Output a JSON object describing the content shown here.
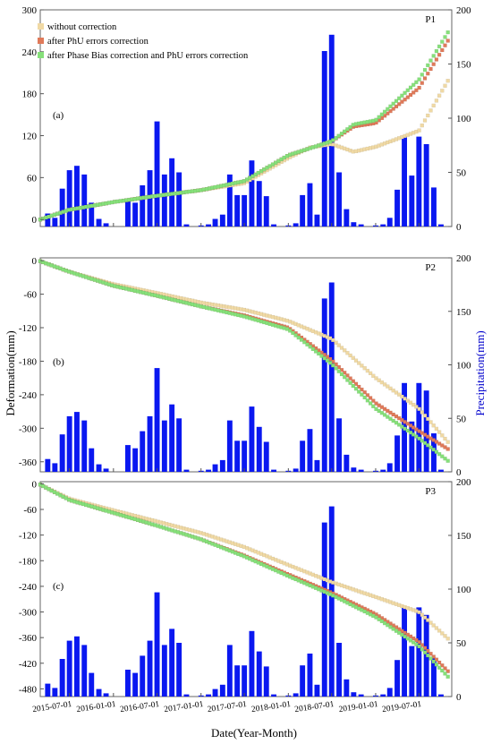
{
  "colors": {
    "without_correction": "#f0d9a4",
    "phu_correction": "#e07a5a",
    "phase_bias_phu_correction": "#86e07a",
    "precipitation_bar": "#0a18f0",
    "precip_axis": "#0000cc"
  },
  "x_axis": {
    "title": "Date(Year-Month)",
    "ticks": [
      "2015-07-01",
      "2016-01-01",
      "2016-07-01",
      "2017-01-01",
      "2017-07-01",
      "2018-01-01",
      "2018-07-01",
      "2019-01-01",
      "2019-07-01"
    ]
  },
  "y_axis_left_title": "Deformation(mm)",
  "y_axis_right_title": "Precipitation(mm)",
  "legend": [
    "without correction",
    "after PhU errors correction",
    "after Phase Bias correction and PhU errors correction"
  ],
  "chart_data": [
    {
      "type": "bar+scatter",
      "panel_label": "(a)",
      "point_label": "P1",
      "x_range": [
        "2015-03-01",
        "2019-11-15"
      ],
      "ylim_left": [
        -10,
        300
      ],
      "yticks_left": [
        0,
        60,
        120,
        180,
        240,
        300
      ],
      "ylim_right": [
        0,
        200
      ],
      "yticks_right": [
        0,
        50,
        100,
        150,
        200
      ],
      "precipitation": [
        [
          "2015-04-01",
          12
        ],
        [
          "2015-05-01",
          8
        ],
        [
          "2015-06-01",
          35
        ],
        [
          "2015-07-01",
          52
        ],
        [
          "2015-08-01",
          56
        ],
        [
          "2015-09-01",
          48
        ],
        [
          "2015-10-01",
          22
        ],
        [
          "2015-11-01",
          7
        ],
        [
          "2015-12-01",
          3
        ],
        [
          "2016-03-01",
          25
        ],
        [
          "2016-04-01",
          22
        ],
        [
          "2016-05-01",
          38
        ],
        [
          "2016-06-01",
          52
        ],
        [
          "2016-07-01",
          97
        ],
        [
          "2016-08-01",
          48
        ],
        [
          "2016-09-01",
          63
        ],
        [
          "2016-10-01",
          50
        ],
        [
          "2016-11-01",
          2
        ],
        [
          "2017-01-01",
          1
        ],
        [
          "2017-02-01",
          2
        ],
        [
          "2017-03-01",
          7
        ],
        [
          "2017-04-01",
          11
        ],
        [
          "2017-05-01",
          48
        ],
        [
          "2017-06-01",
          29
        ],
        [
          "2017-07-01",
          29
        ],
        [
          "2017-08-01",
          61
        ],
        [
          "2017-09-01",
          42
        ],
        [
          "2017-10-01",
          28
        ],
        [
          "2017-11-01",
          2
        ],
        [
          "2018-01-01",
          1
        ],
        [
          "2018-02-01",
          3
        ],
        [
          "2018-03-01",
          29
        ],
        [
          "2018-04-01",
          40
        ],
        [
          "2018-05-01",
          11
        ],
        [
          "2018-06-01",
          162
        ],
        [
          "2018-07-01",
          177
        ],
        [
          "2018-08-01",
          50
        ],
        [
          "2018-09-01",
          16
        ],
        [
          "2018-10-01",
          4
        ],
        [
          "2018-11-01",
          2
        ],
        [
          "2019-01-01",
          1
        ],
        [
          "2019-02-01",
          2
        ],
        [
          "2019-03-01",
          8
        ],
        [
          "2019-04-01",
          34
        ],
        [
          "2019-05-01",
          83
        ],
        [
          "2019-06-01",
          47
        ],
        [
          "2019-07-01",
          83
        ],
        [
          "2019-08-01",
          76
        ],
        [
          "2019-09-01",
          36
        ],
        [
          "2019-10-01",
          2
        ]
      ],
      "series": [
        {
          "name": "without correction",
          "points": [
            [
              "2015-03-01",
              0
            ],
            [
              "2015-07-01",
              14
            ],
            [
              "2016-01-01",
              25
            ],
            [
              "2016-07-01",
              34
            ],
            [
              "2017-01-01",
              42
            ],
            [
              "2017-07-01",
              52
            ],
            [
              "2018-01-01",
              88
            ],
            [
              "2018-04-01",
              103
            ],
            [
              "2018-07-01",
              108
            ],
            [
              "2018-10-01",
              97
            ],
            [
              "2019-01-01",
              104
            ],
            [
              "2019-07-01",
              127
            ],
            [
              "2019-11-10",
              205
            ]
          ]
        },
        {
          "name": "after PhU errors correction",
          "points": [
            [
              "2015-03-01",
              0
            ],
            [
              "2015-07-01",
              14
            ],
            [
              "2016-01-01",
              25
            ],
            [
              "2016-07-01",
              34
            ],
            [
              "2017-01-01",
              42
            ],
            [
              "2017-07-01",
              55
            ],
            [
              "2018-01-01",
              92
            ],
            [
              "2018-07-01",
              112
            ],
            [
              "2018-10-01",
              133
            ],
            [
              "2019-01-01",
              138
            ],
            [
              "2019-07-01",
              188
            ],
            [
              "2019-11-10",
              262
            ]
          ]
        },
        {
          "name": "after Phase Bias correction and PhU errors correction",
          "points": [
            [
              "2015-03-01",
              0
            ],
            [
              "2015-07-01",
              14
            ],
            [
              "2016-01-01",
              25
            ],
            [
              "2016-07-01",
              34
            ],
            [
              "2017-01-01",
              42
            ],
            [
              "2017-07-01",
              55
            ],
            [
              "2018-01-01",
              92
            ],
            [
              "2018-07-01",
              112
            ],
            [
              "2018-10-01",
              136
            ],
            [
              "2019-01-01",
              142
            ],
            [
              "2019-07-01",
              200
            ],
            [
              "2019-11-10",
              274
            ]
          ]
        }
      ]
    },
    {
      "type": "bar+scatter",
      "panel_label": "(b)",
      "point_label": "P2",
      "x_range": [
        "2015-03-01",
        "2019-11-15"
      ],
      "ylim_left": [
        -378,
        5
      ],
      "yticks_left": [
        0,
        -60,
        -120,
        -180,
        -240,
        -300,
        -360
      ],
      "ylim_right": [
        0,
        200
      ],
      "yticks_right": [
        0,
        50,
        100,
        150,
        200
      ],
      "precipitation": [
        [
          "2015-04-01",
          12
        ],
        [
          "2015-05-01",
          8
        ],
        [
          "2015-06-01",
          35
        ],
        [
          "2015-07-01",
          52
        ],
        [
          "2015-08-01",
          56
        ],
        [
          "2015-09-01",
          48
        ],
        [
          "2015-10-01",
          22
        ],
        [
          "2015-11-01",
          7
        ],
        [
          "2015-12-01",
          3
        ],
        [
          "2016-03-01",
          25
        ],
        [
          "2016-04-01",
          22
        ],
        [
          "2016-05-01",
          38
        ],
        [
          "2016-06-01",
          52
        ],
        [
          "2016-07-01",
          97
        ],
        [
          "2016-08-01",
          48
        ],
        [
          "2016-09-01",
          63
        ],
        [
          "2016-10-01",
          50
        ],
        [
          "2016-11-01",
          2
        ],
        [
          "2017-01-01",
          1
        ],
        [
          "2017-02-01",
          2
        ],
        [
          "2017-03-01",
          7
        ],
        [
          "2017-04-01",
          11
        ],
        [
          "2017-05-01",
          48
        ],
        [
          "2017-06-01",
          29
        ],
        [
          "2017-07-01",
          29
        ],
        [
          "2017-08-01",
          61
        ],
        [
          "2017-09-01",
          42
        ],
        [
          "2017-10-01",
          28
        ],
        [
          "2017-11-01",
          2
        ],
        [
          "2018-01-01",
          1
        ],
        [
          "2018-02-01",
          3
        ],
        [
          "2018-03-01",
          29
        ],
        [
          "2018-04-01",
          40
        ],
        [
          "2018-05-01",
          11
        ],
        [
          "2018-06-01",
          162
        ],
        [
          "2018-07-01",
          177
        ],
        [
          "2018-08-01",
          50
        ],
        [
          "2018-09-01",
          16
        ],
        [
          "2018-10-01",
          4
        ],
        [
          "2018-11-01",
          2
        ],
        [
          "2019-01-01",
          1
        ],
        [
          "2019-02-01",
          2
        ],
        [
          "2019-03-01",
          8
        ],
        [
          "2019-04-01",
          34
        ],
        [
          "2019-05-01",
          83
        ],
        [
          "2019-06-01",
          47
        ],
        [
          "2019-07-01",
          83
        ],
        [
          "2019-08-01",
          76
        ],
        [
          "2019-09-01",
          36
        ],
        [
          "2019-10-01",
          2
        ]
      ],
      "series": [
        {
          "name": "without correction",
          "points": [
            [
              "2015-03-01",
              -1
            ],
            [
              "2015-07-01",
              -20
            ],
            [
              "2016-01-01",
              -42
            ],
            [
              "2016-07-01",
              -58
            ],
            [
              "2017-01-01",
              -75
            ],
            [
              "2017-07-01",
              -88
            ],
            [
              "2018-01-01",
              -108
            ],
            [
              "2018-07-01",
              -140
            ],
            [
              "2019-01-01",
              -210
            ],
            [
              "2019-07-01",
              -265
            ],
            [
              "2019-11-10",
              -330
            ]
          ]
        },
        {
          "name": "after PhU errors correction",
          "points": [
            [
              "2015-03-01",
              -1
            ],
            [
              "2015-07-01",
              -20
            ],
            [
              "2016-01-01",
              -45
            ],
            [
              "2016-07-01",
              -63
            ],
            [
              "2017-01-01",
              -82
            ],
            [
              "2017-07-01",
              -98
            ],
            [
              "2018-01-01",
              -120
            ],
            [
              "2018-07-01",
              -178
            ],
            [
              "2019-01-01",
              -255
            ],
            [
              "2019-07-01",
              -305
            ],
            [
              "2019-11-10",
              -340
            ]
          ]
        },
        {
          "name": "after Phase Bias correction and PhU errors correction",
          "points": [
            [
              "2015-03-01",
              -1
            ],
            [
              "2015-07-01",
              -20
            ],
            [
              "2016-01-01",
              -45
            ],
            [
              "2016-07-01",
              -63
            ],
            [
              "2017-01-01",
              -82
            ],
            [
              "2017-07-01",
              -100
            ],
            [
              "2018-01-01",
              -123
            ],
            [
              "2018-07-01",
              -185
            ],
            [
              "2019-01-01",
              -265
            ],
            [
              "2019-07-01",
              -318
            ],
            [
              "2019-11-10",
              -362
            ]
          ]
        }
      ]
    },
    {
      "type": "bar+scatter",
      "panel_label": "(c)",
      "point_label": "P3",
      "x_range": [
        "2015-03-01",
        "2019-11-15"
      ],
      "ylim_left": [
        -498,
        5
      ],
      "yticks_left": [
        0,
        -60,
        -120,
        -180,
        -240,
        -300,
        -360,
        -420,
        -480
      ],
      "ylim_right": [
        0,
        200
      ],
      "yticks_right": [
        0,
        50,
        100,
        150,
        200
      ],
      "precipitation": [
        [
          "2015-04-01",
          12
        ],
        [
          "2015-05-01",
          8
        ],
        [
          "2015-06-01",
          35
        ],
        [
          "2015-07-01",
          52
        ],
        [
          "2015-08-01",
          56
        ],
        [
          "2015-09-01",
          48
        ],
        [
          "2015-10-01",
          22
        ],
        [
          "2015-11-01",
          7
        ],
        [
          "2015-12-01",
          3
        ],
        [
          "2016-03-01",
          25
        ],
        [
          "2016-04-01",
          22
        ],
        [
          "2016-05-01",
          38
        ],
        [
          "2016-06-01",
          52
        ],
        [
          "2016-07-01",
          97
        ],
        [
          "2016-08-01",
          48
        ],
        [
          "2016-09-01",
          63
        ],
        [
          "2016-10-01",
          50
        ],
        [
          "2016-11-01",
          2
        ],
        [
          "2017-01-01",
          1
        ],
        [
          "2017-02-01",
          2
        ],
        [
          "2017-03-01",
          7
        ],
        [
          "2017-04-01",
          11
        ],
        [
          "2017-05-01",
          48
        ],
        [
          "2017-06-01",
          29
        ],
        [
          "2017-07-01",
          29
        ],
        [
          "2017-08-01",
          61
        ],
        [
          "2017-09-01",
          42
        ],
        [
          "2017-10-01",
          28
        ],
        [
          "2017-11-01",
          2
        ],
        [
          "2018-01-01",
          1
        ],
        [
          "2018-02-01",
          3
        ],
        [
          "2018-03-01",
          29
        ],
        [
          "2018-04-01",
          40
        ],
        [
          "2018-05-01",
          11
        ],
        [
          "2018-06-01",
          162
        ],
        [
          "2018-07-01",
          177
        ],
        [
          "2018-08-01",
          50
        ],
        [
          "2018-09-01",
          16
        ],
        [
          "2018-10-01",
          4
        ],
        [
          "2018-11-01",
          2
        ],
        [
          "2019-01-01",
          1
        ],
        [
          "2019-02-01",
          2
        ],
        [
          "2019-03-01",
          8
        ],
        [
          "2019-04-01",
          34
        ],
        [
          "2019-05-01",
          83
        ],
        [
          "2019-06-01",
          47
        ],
        [
          "2019-07-01",
          83
        ],
        [
          "2019-08-01",
          76
        ],
        [
          "2019-09-01",
          36
        ],
        [
          "2019-10-01",
          2
        ]
      ],
      "series": [
        {
          "name": "without correction",
          "points": [
            [
              "2015-03-01",
              -2
            ],
            [
              "2015-07-01",
              -35
            ],
            [
              "2016-01-01",
              -62
            ],
            [
              "2016-07-01",
              -88
            ],
            [
              "2017-01-01",
              -115
            ],
            [
              "2017-07-01",
              -148
            ],
            [
              "2018-01-01",
              -190
            ],
            [
              "2018-07-01",
              -230
            ],
            [
              "2019-01-01",
              -265
            ],
            [
              "2019-07-01",
              -300
            ],
            [
              "2019-11-10",
              -368
            ]
          ]
        },
        {
          "name": "after PhU errors correction",
          "points": [
            [
              "2015-03-01",
              -2
            ],
            [
              "2015-07-01",
              -38
            ],
            [
              "2016-01-01",
              -68
            ],
            [
              "2016-07-01",
              -98
            ],
            [
              "2017-01-01",
              -130
            ],
            [
              "2017-07-01",
              -168
            ],
            [
              "2018-01-01",
              -212
            ],
            [
              "2018-07-01",
              -255
            ],
            [
              "2019-01-01",
              -305
            ],
            [
              "2019-07-01",
              -370
            ],
            [
              "2019-11-10",
              -445
            ]
          ]
        },
        {
          "name": "after Phase Bias correction and PhU errors correction",
          "points": [
            [
              "2015-03-01",
              -2
            ],
            [
              "2015-07-01",
              -38
            ],
            [
              "2016-01-01",
              -68
            ],
            [
              "2016-07-01",
              -98
            ],
            [
              "2017-01-01",
              -130
            ],
            [
              "2017-07-01",
              -170
            ],
            [
              "2018-01-01",
              -216
            ],
            [
              "2018-07-01",
              -260
            ],
            [
              "2019-01-01",
              -312
            ],
            [
              "2019-07-01",
              -380
            ],
            [
              "2019-11-10",
              -458
            ]
          ]
        }
      ]
    }
  ]
}
